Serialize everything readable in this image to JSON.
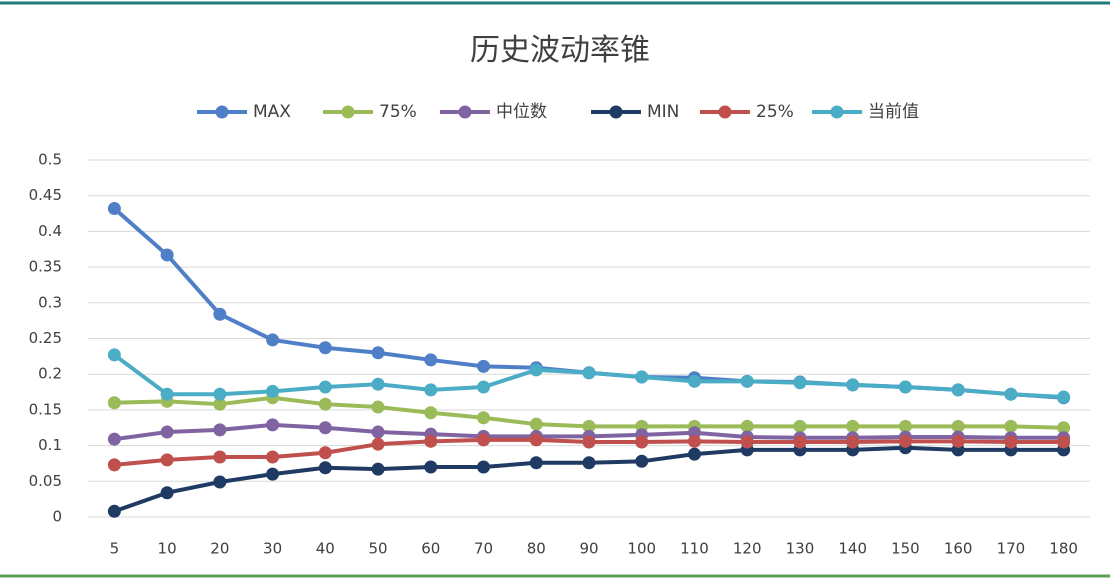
{
  "chart_data": {
    "type": "line",
    "title": "历史波动率锥",
    "categories": [
      "5",
      "10",
      "20",
      "30",
      "40",
      "50",
      "60",
      "70",
      "80",
      "90",
      "100",
      "110",
      "120",
      "130",
      "140",
      "150",
      "160",
      "170",
      "180"
    ],
    "series": [
      {
        "name": "MAX",
        "color": "#4f7fc7",
        "values": [
          0.432,
          0.367,
          0.284,
          0.248,
          0.237,
          0.23,
          0.22,
          0.211,
          0.209,
          0.202,
          0.196,
          0.195,
          0.19,
          0.189,
          0.185,
          0.182,
          0.178,
          0.172,
          0.167
        ]
      },
      {
        "name": "75%",
        "color": "#9bbb59",
        "values": [
          0.16,
          0.162,
          0.158,
          0.167,
          0.158,
          0.154,
          0.146,
          0.139,
          0.13,
          0.127,
          0.127,
          0.127,
          0.127,
          0.127,
          0.127,
          0.127,
          0.127,
          0.127,
          0.125
        ]
      },
      {
        "name": "中位数",
        "color": "#8064a2",
        "values": [
          0.109,
          0.119,
          0.122,
          0.129,
          0.125,
          0.119,
          0.116,
          0.113,
          0.113,
          0.113,
          0.115,
          0.118,
          0.112,
          0.111,
          0.111,
          0.112,
          0.112,
          0.111,
          0.111
        ]
      },
      {
        "name": "MIN",
        "color": "#1f3b63",
        "values": [
          0.008,
          0.034,
          0.049,
          0.06,
          0.069,
          0.067,
          0.07,
          0.07,
          0.076,
          0.076,
          0.078,
          0.088,
          0.094,
          0.094,
          0.094,
          0.097,
          0.094,
          0.094,
          0.094
        ]
      },
      {
        "name": "25%",
        "color": "#c0504d",
        "values": [
          0.073,
          0.08,
          0.084,
          0.084,
          0.09,
          0.102,
          0.106,
          0.108,
          0.108,
          0.105,
          0.105,
          0.106,
          0.105,
          0.105,
          0.105,
          0.106,
          0.106,
          0.105,
          0.105
        ]
      },
      {
        "name": "当前值",
        "color": "#4bacc6",
        "values": [
          0.227,
          0.172,
          0.172,
          0.176,
          0.182,
          0.186,
          0.178,
          0.182,
          0.206,
          0.202,
          0.196,
          0.19,
          0.19,
          0.188,
          0.185,
          0.182,
          0.178,
          0.172,
          0.168
        ]
      }
    ],
    "ylim": [
      0,
      0.5
    ],
    "yticks": [
      0,
      0.05,
      0.1,
      0.15,
      0.2,
      0.25,
      0.3,
      0.35,
      0.4,
      0.45,
      0.5
    ],
    "grid": true,
    "legend": "top"
  }
}
